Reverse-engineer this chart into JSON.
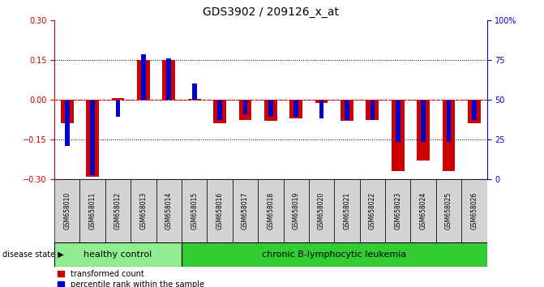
{
  "title": "GDS3902 / 209126_x_at",
  "samples": [
    "GSM658010",
    "GSM658011",
    "GSM658012",
    "GSM658013",
    "GSM658014",
    "GSM658015",
    "GSM658016",
    "GSM658017",
    "GSM658018",
    "GSM658019",
    "GSM658020",
    "GSM658021",
    "GSM658022",
    "GSM658023",
    "GSM658024",
    "GSM658025",
    "GSM658026"
  ],
  "red_values": [
    -0.09,
    -0.29,
    0.005,
    0.15,
    0.15,
    0.002,
    -0.09,
    -0.075,
    -0.08,
    -0.07,
    -0.012,
    -0.08,
    -0.075,
    -0.27,
    -0.23,
    -0.27,
    -0.09
  ],
  "blue_values": [
    -0.175,
    -0.285,
    -0.065,
    0.17,
    0.155,
    0.06,
    -0.075,
    -0.055,
    -0.065,
    -0.065,
    -0.07,
    -0.075,
    -0.075,
    -0.16,
    -0.16,
    -0.16,
    -0.075
  ],
  "ylim": [
    -0.3,
    0.3
  ],
  "yticks_left": [
    -0.3,
    -0.15,
    0,
    0.15,
    0.3
  ],
  "yticks_right_pct": [
    0,
    25,
    50,
    75,
    100
  ],
  "ytick_right_labels": [
    "0",
    "25",
    "50",
    "75",
    "100%"
  ],
  "dotted_lines": [
    0.15,
    0,
    -0.15
  ],
  "healthy_count": 5,
  "group1_label": "healthy control",
  "group2_label": "chronic B-lymphocytic leukemia",
  "disease_state_label": "disease state",
  "legend1": "transformed count",
  "legend2": "percentile rank within the sample",
  "red_color": "#cc0000",
  "blue_color": "#0000cc",
  "bar_width": 0.5,
  "blue_bar_width": 0.18,
  "bg_color": "#ffffff",
  "plot_bg": "#ffffff",
  "group1_color": "#90ee90",
  "group2_color": "#32cd32",
  "sample_cell_color": "#d3d3d3",
  "title_fontsize": 10,
  "legend_fontsize": 7,
  "sample_fontsize": 5.5,
  "group_fontsize": 8,
  "ytick_fontsize": 7,
  "disease_fontsize": 7
}
